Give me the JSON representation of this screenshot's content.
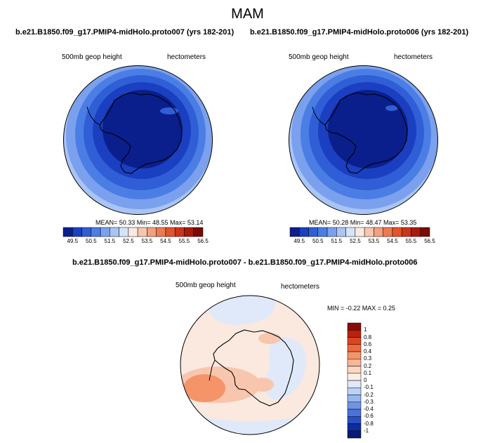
{
  "title": "MAM",
  "panels": [
    {
      "case": "b.e21.B1850.f09_g17.PMIP4-midHolo.proto007 (yrs 182-201)",
      "variable": "500mb geop height",
      "units": "hectometers",
      "stats": {
        "text": "MEAN= 50.33  Min= 48.55  Max= 53.14"
      }
    },
    {
      "case": "b.e21.B1850.f09_g17.PMIP4-midHolo.proto006 (yrs 182-201)",
      "variable": "500mb geop height",
      "units": "hectometers",
      "stats": {
        "text": "MEAN= 50.28  Min= 48.47  Max= 53.35"
      }
    }
  ],
  "colorbar": {
    "labels": [
      "49.5",
      "50.5",
      "51.5",
      "52.5",
      "53.5",
      "54.5",
      "55.5",
      "56.5"
    ],
    "colors": [
      "#0a1f8c",
      "#1a3fc0",
      "#2f5ed6",
      "#4b7ee4",
      "#7aa0ee",
      "#a9c4f5",
      "#d6e4fa",
      "#fbe9df",
      "#f8c6ae",
      "#f3a07d",
      "#ec7a52",
      "#e3532c",
      "#cc3418",
      "#a81a0c",
      "#7a0806"
    ]
  },
  "diff": {
    "title": "b.e21.B1850.f09_g17.PMIP4-midHolo.proto007 - b.e21.B1850.f09_g17.PMIP4-midHolo.proto006",
    "variable": "500mb geop height",
    "units": "hectometers",
    "stats": "MIN =  -0.22 MAX =   0.25",
    "colorbar_labels": [
      "1",
      "0.8",
      "0.6",
      "0.4",
      "0.3",
      "0.2",
      "0.1",
      "0",
      "-0.1",
      "-0.2",
      "-0.3",
      "-0.4",
      "-0.6",
      "-0.8",
      "-1"
    ],
    "colorbar_colors": [
      "#8b0a06",
      "#bb2110",
      "#dd4420",
      "#ee6a3e",
      "#f59468",
      "#f8b696",
      "#fbd6c2",
      "#fdeee4",
      "#dfe9fa",
      "#bcd2f5",
      "#97b6ee",
      "#6f94e4",
      "#4a72d8",
      "#2a4fc4",
      "#0f2b9c",
      "#071a74"
    ]
  }
}
